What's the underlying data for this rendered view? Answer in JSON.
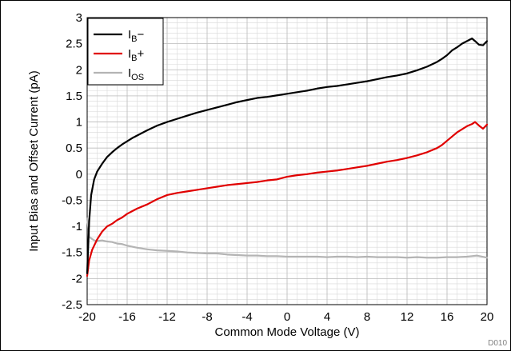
{
  "chart_data": {
    "type": "line",
    "title": "",
    "xlabel": "Common Mode Voltage (V)",
    "ylabel": "Input Bias and Offset Current (pA)",
    "xlim": [
      -20,
      20
    ],
    "ylim": [
      -2.5,
      3
    ],
    "xticks": [
      -20,
      -16,
      -12,
      -8,
      -4,
      0,
      4,
      8,
      12,
      16,
      20
    ],
    "yticks": [
      -2.5,
      -2,
      -1.5,
      -1,
      -0.5,
      0,
      0.5,
      1,
      1.5,
      2,
      2.5,
      3
    ],
    "grid": true,
    "legend_position": "top-left",
    "figure_id": "D010",
    "series": [
      {
        "name": "IB−",
        "label_main": "I",
        "label_sub": "B",
        "label_suffix": "−",
        "color": "#000000",
        "x": [
          -20,
          -19.8,
          -19.6,
          -19.3,
          -19,
          -18.5,
          -18,
          -17.5,
          -17,
          -16.5,
          -16,
          -15.5,
          -15,
          -14,
          -13,
          -12,
          -11,
          -10,
          -9,
          -8,
          -7,
          -6,
          -5,
          -4,
          -3,
          -2,
          -1,
          0,
          1,
          2,
          3,
          4,
          5,
          6,
          7,
          8,
          9,
          10,
          11,
          12,
          13,
          14,
          15,
          15.5,
          16,
          16.5,
          17,
          17.5,
          18,
          18.5,
          18.8,
          19.2,
          19.6,
          20
        ],
        "y": [
          -1.9,
          -0.9,
          -0.4,
          -0.1,
          0.05,
          0.2,
          0.33,
          0.42,
          0.5,
          0.57,
          0.63,
          0.69,
          0.74,
          0.84,
          0.93,
          1.0,
          1.06,
          1.12,
          1.18,
          1.23,
          1.28,
          1.33,
          1.38,
          1.42,
          1.46,
          1.48,
          1.51,
          1.54,
          1.57,
          1.6,
          1.64,
          1.67,
          1.69,
          1.72,
          1.75,
          1.78,
          1.82,
          1.86,
          1.89,
          1.93,
          1.99,
          2.06,
          2.15,
          2.21,
          2.28,
          2.37,
          2.43,
          2.5,
          2.55,
          2.6,
          2.55,
          2.48,
          2.47,
          2.55
        ]
      },
      {
        "name": "IB+",
        "label_main": "I",
        "label_sub": "B",
        "label_suffix": "+",
        "color": "#e00000",
        "x": [
          -20,
          -19.8,
          -19.5,
          -19,
          -18.5,
          -18,
          -17.5,
          -17,
          -16.5,
          -16,
          -15.5,
          -15,
          -14,
          -13,
          -12,
          -11,
          -10,
          -9,
          -8,
          -7,
          -6,
          -5,
          -4,
          -3,
          -2,
          -1,
          0,
          1,
          2,
          3,
          4,
          5,
          6,
          7,
          8,
          9,
          10,
          11,
          12,
          13,
          14,
          15,
          15.5,
          16,
          16.5,
          17,
          17.5,
          18,
          18.5,
          18.8,
          19.2,
          19.6,
          20
        ],
        "y": [
          -1.95,
          -1.65,
          -1.45,
          -1.25,
          -1.1,
          -1.0,
          -0.95,
          -0.88,
          -0.83,
          -0.76,
          -0.71,
          -0.66,
          -0.58,
          -0.48,
          -0.4,
          -0.36,
          -0.33,
          -0.3,
          -0.27,
          -0.24,
          -0.21,
          -0.19,
          -0.17,
          -0.15,
          -0.12,
          -0.1,
          -0.05,
          -0.02,
          0.0,
          0.03,
          0.05,
          0.07,
          0.1,
          0.13,
          0.16,
          0.2,
          0.24,
          0.27,
          0.31,
          0.36,
          0.42,
          0.5,
          0.56,
          0.64,
          0.72,
          0.8,
          0.86,
          0.92,
          0.96,
          1.0,
          0.93,
          0.87,
          0.95
        ]
      },
      {
        "name": "IOS",
        "label_main": "I",
        "label_sub": "OS",
        "label_suffix": "",
        "color": "#b4b4b4",
        "x": [
          -20,
          -19.9,
          -19.8,
          -19.6,
          -19.3,
          -19,
          -18.5,
          -18,
          -17.5,
          -17,
          -16.5,
          -16,
          -15,
          -14,
          -13,
          -12,
          -11,
          -10,
          -9,
          -8,
          -7,
          -6,
          -5,
          -4,
          -3,
          -2,
          -1,
          0,
          1,
          2,
          3,
          4,
          5,
          6,
          7,
          8,
          9,
          10,
          11,
          12,
          13,
          14,
          15,
          16,
          17,
          18,
          18.5,
          19,
          19.5,
          20
        ],
        "y": [
          -0.85,
          -1.0,
          -1.2,
          -1.23,
          -1.27,
          -1.28,
          -1.27,
          -1.29,
          -1.3,
          -1.33,
          -1.34,
          -1.37,
          -1.41,
          -1.44,
          -1.46,
          -1.47,
          -1.48,
          -1.5,
          -1.51,
          -1.52,
          -1.52,
          -1.54,
          -1.55,
          -1.56,
          -1.56,
          -1.57,
          -1.57,
          -1.58,
          -1.58,
          -1.58,
          -1.58,
          -1.59,
          -1.58,
          -1.58,
          -1.59,
          -1.58,
          -1.59,
          -1.59,
          -1.59,
          -1.6,
          -1.59,
          -1.6,
          -1.6,
          -1.59,
          -1.59,
          -1.58,
          -1.57,
          -1.56,
          -1.58,
          -1.6
        ]
      }
    ]
  }
}
